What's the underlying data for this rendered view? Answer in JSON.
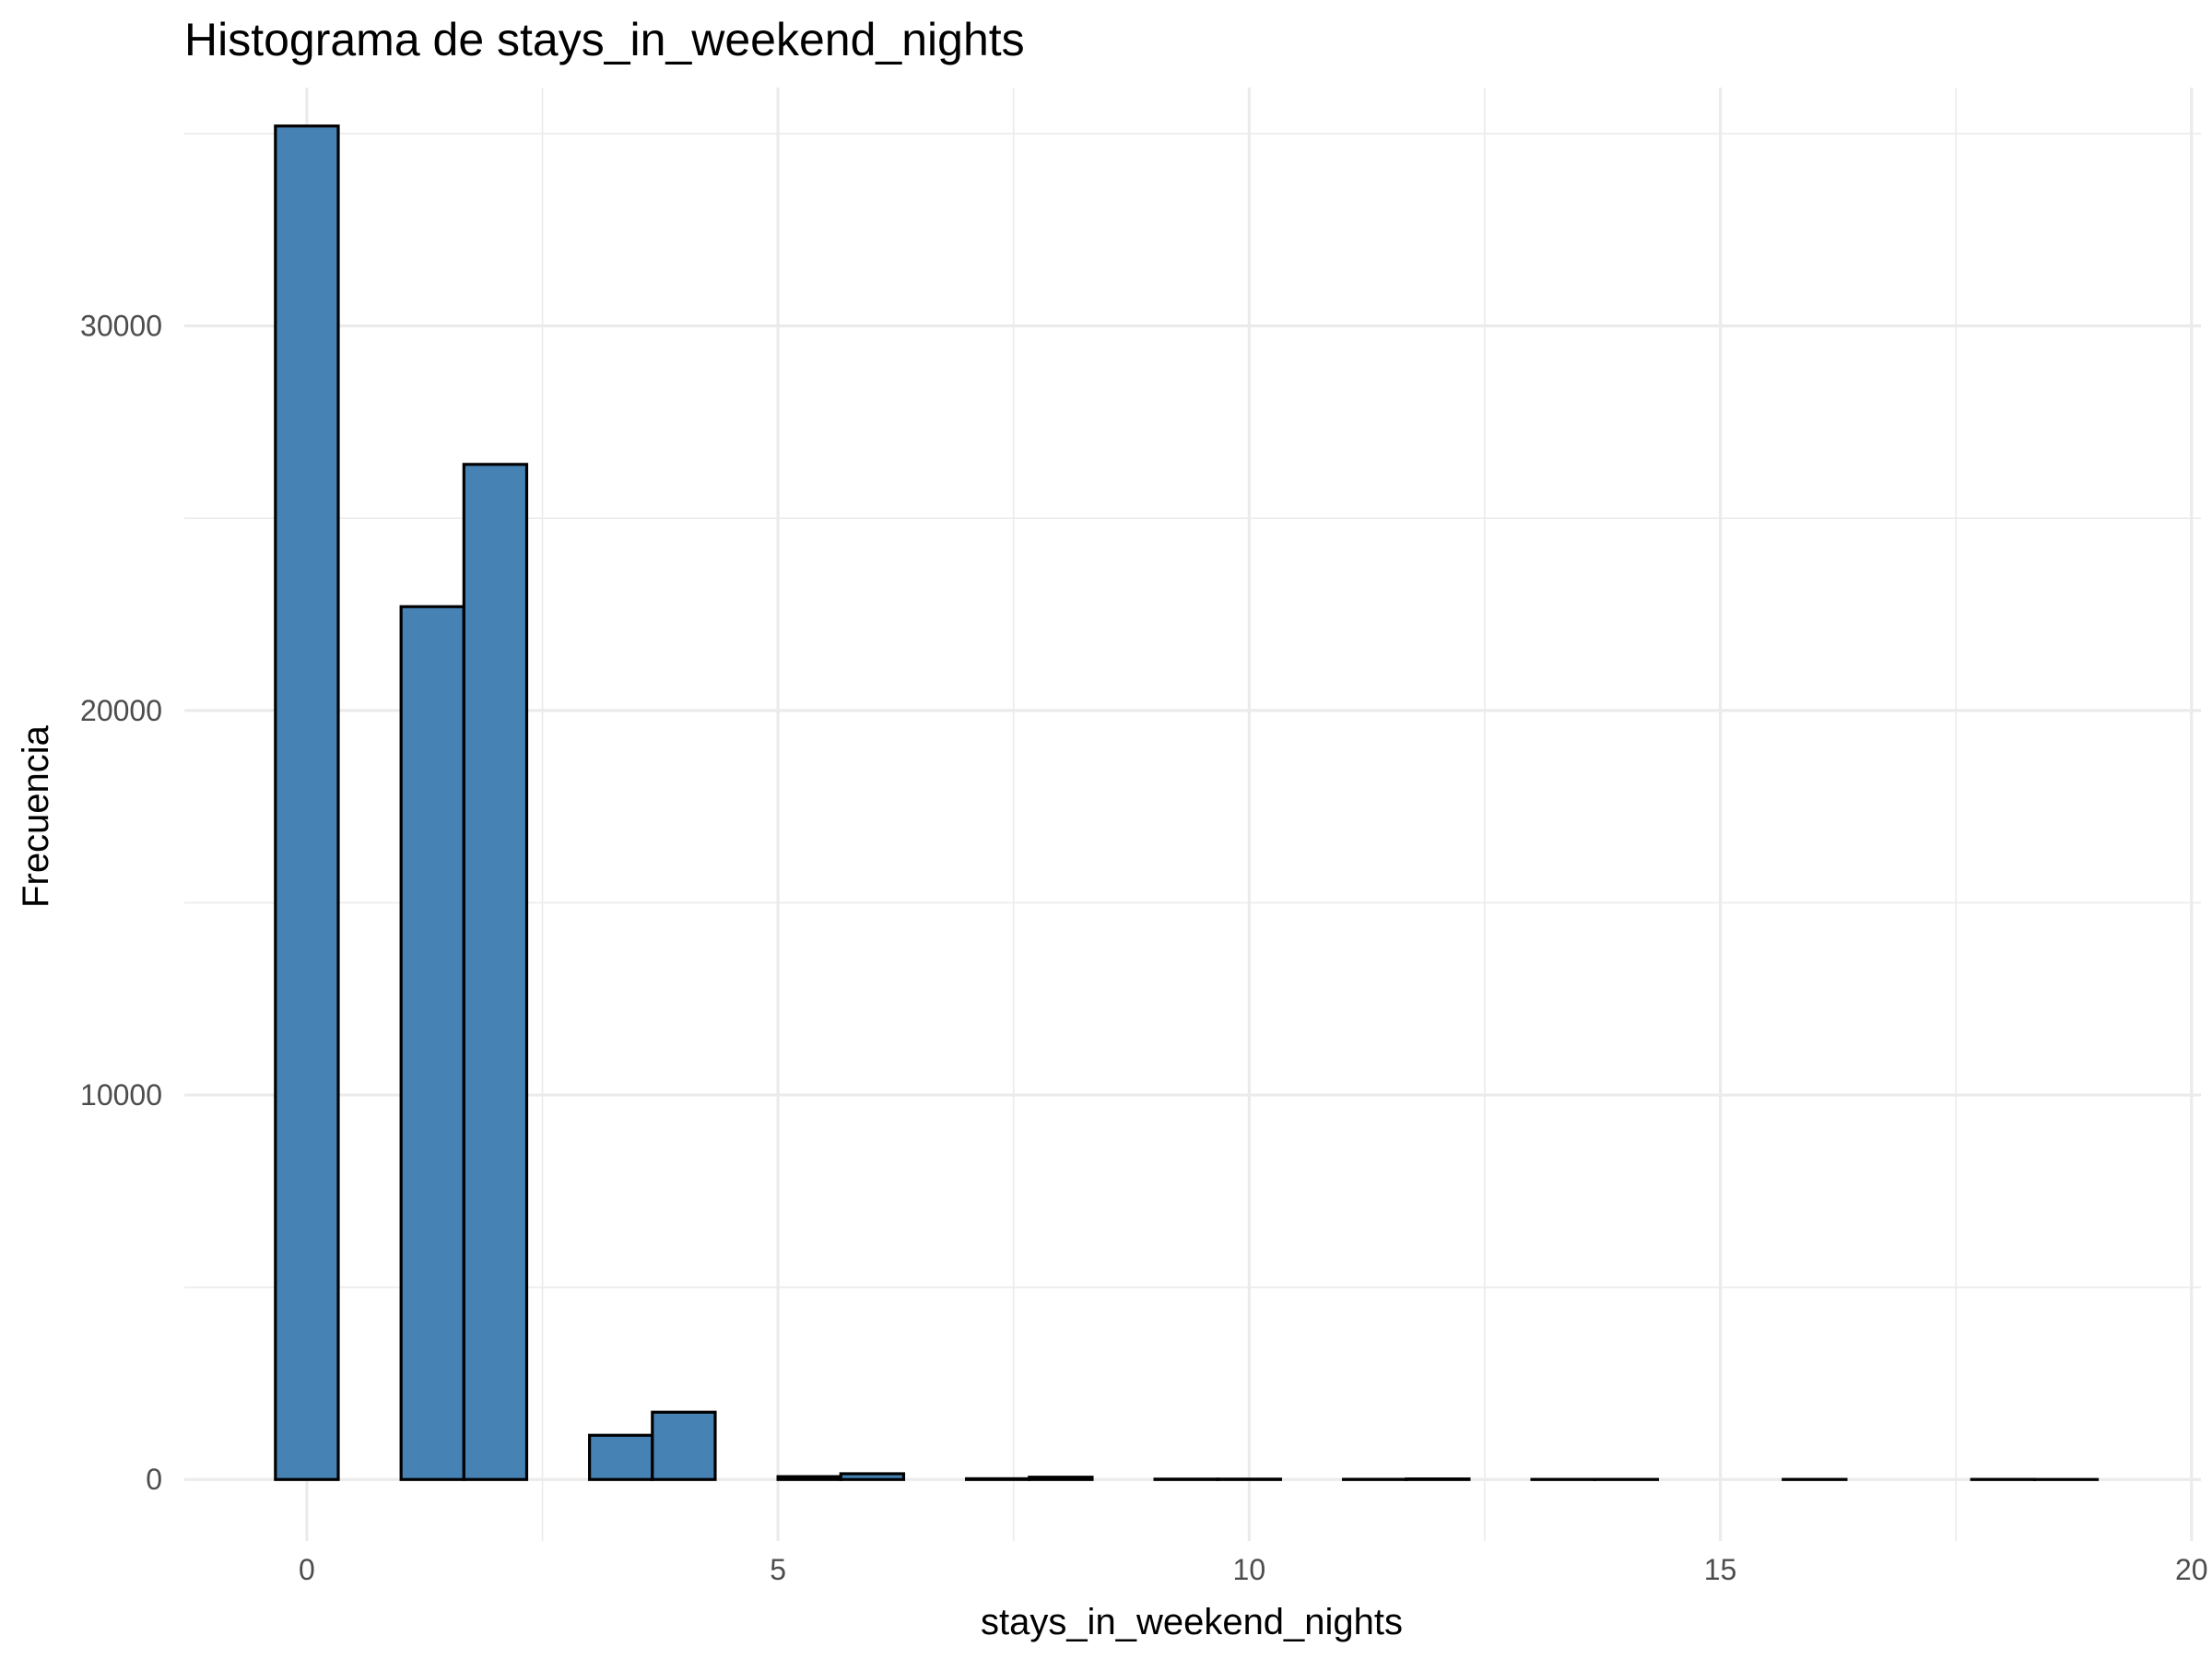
{
  "chart_data": {
    "type": "bar",
    "title": "Histograma de stays_in_weekend_nights",
    "xlabel": "stays_in_weekend_nights",
    "ylabel": "Frecuencia",
    "binwidth": 0.6667,
    "xlim": [
      -1.3,
      20.1
    ],
    "ylim": [
      -1600,
      36200
    ],
    "x_ticks": [
      0,
      5,
      10,
      15,
      20
    ],
    "y_ticks": [
      0,
      10000,
      20000,
      30000
    ],
    "grid": true,
    "legend": "none",
    "colors": {
      "fill": "#4682b4",
      "outline": "#000000",
      "grid": "#ebebeb"
    },
    "bins": [
      {
        "x": 0,
        "count": 35200
      },
      {
        "x": 0.6667,
        "count": 0
      },
      {
        "x": 1.3333,
        "count": 22700
      },
      {
        "x": 2,
        "count": 26400
      },
      {
        "x": 2.6667,
        "count": 0
      },
      {
        "x": 3.3333,
        "count": 1150
      },
      {
        "x": 4,
        "count": 1750
      },
      {
        "x": 4.6667,
        "count": 0
      },
      {
        "x": 5.3333,
        "count": 75
      },
      {
        "x": 6,
        "count": 150
      },
      {
        "x": 6.6667,
        "count": 0
      },
      {
        "x": 7.3333,
        "count": 20
      },
      {
        "x": 8,
        "count": 60
      },
      {
        "x": 8.6667,
        "count": 0
      },
      {
        "x": 9.3333,
        "count": 10
      },
      {
        "x": 10,
        "count": 10
      },
      {
        "x": 10.6667,
        "count": 0
      },
      {
        "x": 11.3333,
        "count": 5
      },
      {
        "x": 12,
        "count": 15
      },
      {
        "x": 12.6667,
        "count": 0
      },
      {
        "x": 13.3333,
        "count": 3
      },
      {
        "x": 14,
        "count": 3
      },
      {
        "x": 14.6667,
        "count": 0
      },
      {
        "x": 15.3333,
        "count": 0
      },
      {
        "x": 16,
        "count": 3
      },
      {
        "x": 16.6667,
        "count": 0
      },
      {
        "x": 17.3333,
        "count": 0
      },
      {
        "x": 18,
        "count": 3
      },
      {
        "x": 18.6667,
        "count": 1
      }
    ]
  }
}
